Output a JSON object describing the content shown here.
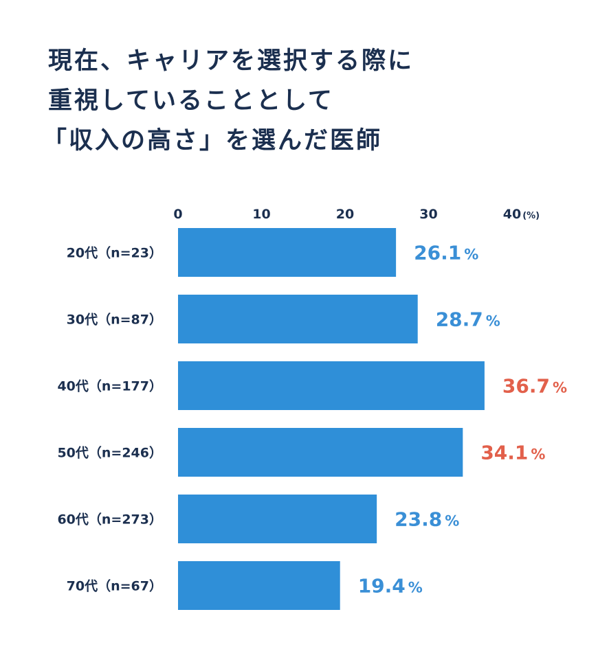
{
  "chart_data": {
    "type": "barh",
    "title_lines": [
      "現在、キャリアを選択する際に",
      "重視していることとして",
      "「収入の高さ」を選んだ医師"
    ],
    "categories": [
      "20代（n=23）",
      "30代（n=87）",
      "40代（n=177）",
      "50代（n=246）",
      "60代（n=273）",
      "70代（n=67）"
    ],
    "values": [
      26.1,
      28.7,
      36.7,
      34.1,
      23.8,
      19.4
    ],
    "value_unit": "%",
    "color": "#2f8fd8",
    "label_colors": [
      "#3a8fd6",
      "#3a8fd6",
      "#e2604b",
      "#e2604b",
      "#3a8fd6",
      "#3a8fd6"
    ],
    "xlim": [
      0,
      40
    ],
    "xticks": [
      0,
      10,
      20,
      30,
      40
    ],
    "x_unit_label": "(%)"
  }
}
